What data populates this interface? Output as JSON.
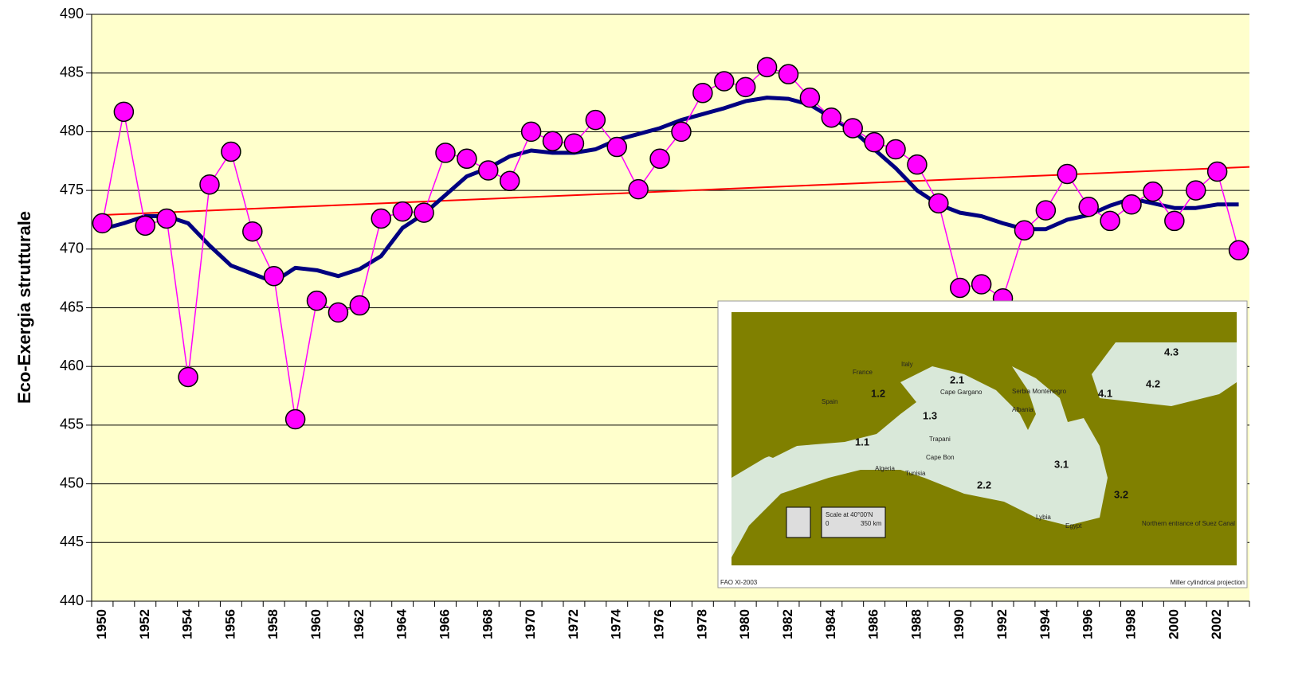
{
  "chart_data": {
    "type": "line",
    "y_label": "Eco-Exergia strutturale",
    "categories": [
      "1950",
      null,
      "1952",
      null,
      "1954",
      null,
      "1956",
      null,
      "1958",
      null,
      "1960",
      null,
      "1962",
      null,
      "1964",
      null,
      "1966",
      null,
      "1968",
      null,
      "1970",
      null,
      "1972",
      null,
      "1974",
      null,
      "1976",
      null,
      "1978",
      null,
      "1980",
      null,
      "1982",
      null,
      "1984",
      null,
      "1986",
      null,
      "1988",
      null,
      "1990",
      null,
      "1992",
      null,
      "1994",
      null,
      "1996",
      null,
      "1998",
      null,
      "2000",
      null,
      "2002",
      null
    ],
    "series": [
      {
        "color": "#ff00ff",
        "marker": true,
        "values": [
          472.2,
          481.7,
          472.0,
          472.6,
          459.1,
          475.5,
          478.3,
          471.5,
          467.7,
          455.5,
          465.6,
          464.6,
          465.2,
          472.6,
          473.2,
          473.1,
          478.2,
          477.7,
          476.7,
          475.8,
          480.0,
          479.2,
          479.0,
          481.0,
          478.7,
          475.1,
          477.7,
          480.0,
          483.3,
          484.3,
          483.8,
          485.5,
          484.9,
          482.9,
          481.2,
          480.3,
          479.1,
          478.5,
          477.2,
          473.9,
          466.7,
          467.0,
          465.8,
          471.6,
          473.3,
          476.4,
          473.6,
          472.4,
          473.8,
          474.9,
          472.4,
          475.0,
          476.6,
          469.9
        ]
      },
      {
        "color": "#000080",
        "marker": false,
        "values": [
          471.7,
          472.2,
          472.8,
          472.8,
          472.2,
          470.3,
          468.6,
          467.9,
          467.2,
          468.4,
          468.2,
          467.7,
          468.3,
          469.4,
          471.8,
          473.0,
          474.6,
          476.2,
          476.9,
          477.9,
          478.4,
          478.2,
          478.2,
          478.5,
          479.3,
          479.8,
          480.3,
          481.0,
          481.5,
          482.0,
          482.6,
          482.9,
          482.8,
          482.3,
          481.2,
          480.1,
          478.5,
          476.9,
          475.0,
          473.8,
          473.1,
          472.8,
          472.2,
          471.7,
          471.7,
          472.5,
          472.9,
          473.7,
          474.3,
          473.9,
          473.5,
          473.5,
          473.8,
          473.8
        ]
      }
    ],
    "trendline": {
      "color": "#ff0000",
      "values": [
        472.9,
        477.0
      ]
    },
    "ylim": [
      440,
      490
    ],
    "yticks": [
      440,
      445,
      450,
      455,
      460,
      465,
      470,
      475,
      480,
      485,
      490
    ],
    "grid": true,
    "background": "#ffffcc"
  },
  "map": {
    "labels": [
      "1.1",
      "1.2",
      "1.3",
      "2.1",
      "2.2",
      "3.1",
      "3.2",
      "4.1",
      "4.2",
      "4.3",
      "France",
      "Italy",
      "Spain",
      "Algeria",
      "Tunisia",
      "Lybia",
      "Egypt",
      "Albania",
      "Serbia Montenegro",
      "Trapani",
      "Cape Bon",
      "Cape Gargano",
      "Northern entrance of Suez Canal",
      "Scale at 40°00'N",
      "0",
      "350 km",
      "FAO XI-2003",
      "Miller cylindrical projection"
    ]
  }
}
